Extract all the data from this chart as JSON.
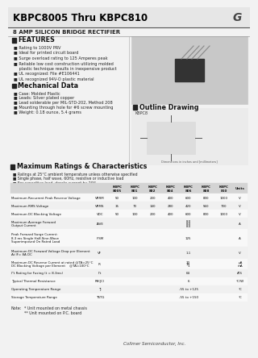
{
  "title": "KBPC8005 Thru KBPC810",
  "subtitle": "8 AMP SILICON BRIDGE RECTIFIER",
  "features_title": "FEATURES",
  "features": [
    "Rating to 1000V PRV",
    "Ideal for printed circuit board",
    "Surge overload rating to 125 Amperes peak",
    "Reliable low cost construction utilizing molded plastic technique results in inexpensive product",
    "UL recognized: File #E106441",
    "UL recognized 94V-O plastic material"
  ],
  "mech_title": "Mechanical Data",
  "mech": [
    "Case: Molded Plastic",
    "Leads: Silver plated copper",
    "Lead solderable per MIL-STD-202, Method 208",
    "Mounting through hole for #6 screw mounting",
    "Weight: 0.18 ounce, 5.4 grams"
  ],
  "outline_title": "Outline Drawing",
  "ratings_title": "Maximum Ratings & Characteristics",
  "ratings_notes": [
    "Ratings at 25°C ambient temperature unless otherwise specified",
    "Single phase, half wave, 60Hz, resistive or inductive load",
    "For capacitive load, derate current by 20%"
  ],
  "col_headers": [
    "KBPC\n8005",
    "KBPC\n801",
    "KBPC\n802",
    "KBPC\n804",
    "KBPC\n806",
    "KBPC\n808",
    "KBPC\n810",
    "Units"
  ],
  "note1": "* Unit mounted on metal chassis",
  "note2": "** Unit mounted on P.C. board",
  "company": "Collmer Semiconductor, Inc.",
  "bg": "#f2f2f2",
  "white": "#ffffff",
  "black": "#111111",
  "gray_light": "#e0e0e0",
  "gray_mid": "#cccccc",
  "text_dark": "#1a1a1a",
  "text_mid": "#333333"
}
